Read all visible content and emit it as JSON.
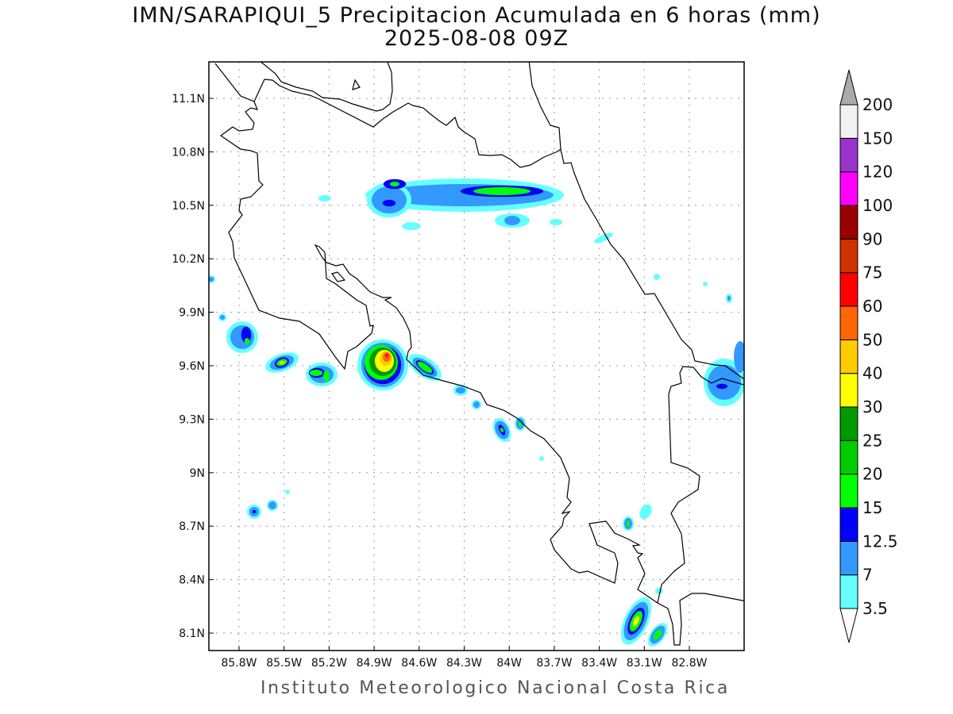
{
  "title": {
    "line1": "IMN/SARAPIQUI_5 Precipitacion Acumulada en 6 horas (mm)",
    "line2": "2025-08-08 09Z"
  },
  "footer": "Instituto Meteorologico Nacional Costa Rica",
  "map": {
    "lat_labels": [
      "11.1N",
      "10.8N",
      "10.5N",
      "10.2N",
      "9.9N",
      "9.6N",
      "9.3N",
      "9N",
      "8.7N",
      "8.4N",
      "8.1N"
    ],
    "lon_labels": [
      "85.8W",
      "85.5W",
      "85.2W",
      "84.9W",
      "84.6W",
      "84.3W",
      "84W",
      "83.7W",
      "83.4W",
      "83.1W",
      "82.8W"
    ],
    "lon_range_deg_w": [
      86.0,
      82.44
    ],
    "lat_range_deg_n": [
      8.0,
      11.3
    ]
  },
  "colorbar": {
    "levels": [
      "3.5",
      "7",
      "12.5",
      "15",
      "20",
      "25",
      "30",
      "40",
      "50",
      "60",
      "75",
      "90",
      "100",
      "120",
      "150",
      "200"
    ],
    "colors": [
      "#66ffff",
      "#3399ff",
      "#0000ff",
      "#00ff00",
      "#00cc00",
      "#009900",
      "#ffff00",
      "#ffcc00",
      "#ff6600",
      "#ff0000",
      "#cc3300",
      "#990000",
      "#ff00ff",
      "#9933cc",
      "#f2f2f2"
    ],
    "below_color": "#ffffff",
    "above_color": "#aaaaaa"
  }
}
